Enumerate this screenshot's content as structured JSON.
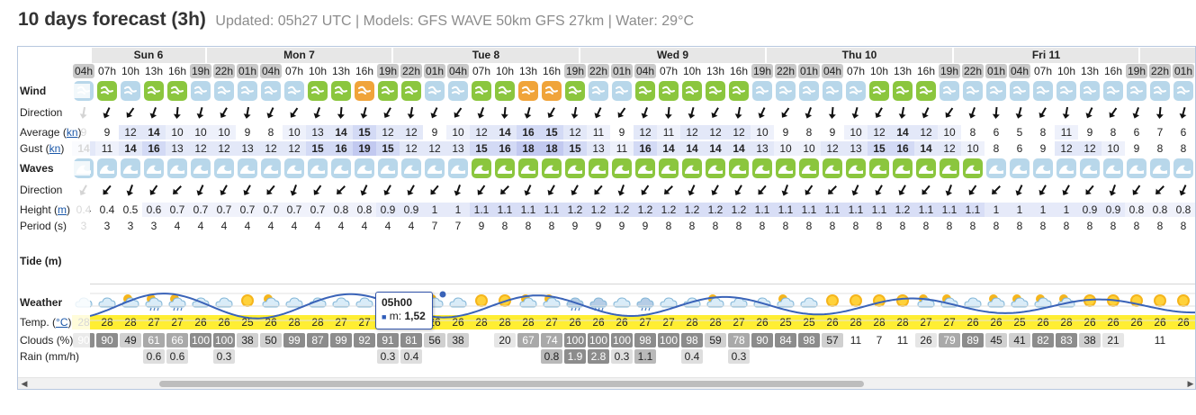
{
  "header": {
    "title": "10 days forecast (3h)",
    "updated": "Updated: 05h27 UTC | Models: GFS WAVE 50km GFS 27km | Water: 29°C"
  },
  "days": [
    {
      "label": "Sun 6"
    },
    {
      "label": "Mon 7"
    },
    {
      "label": "Tue 8"
    },
    {
      "label": "Wed 9"
    },
    {
      "label": "Thu 10"
    },
    {
      "label": "Fri 11"
    }
  ],
  "labels": {
    "wind": "Wind",
    "direction": "Direction",
    "average": "Average (",
    "average_unit": "kn",
    "gust": "Gust (",
    "gust_unit": "kn",
    "waves": "Waves",
    "wave_direction": "Direction",
    "height": "Height (",
    "height_unit": "m",
    "period": "Period (s)",
    "tide": "Tide (m)",
    "weather": "Weather",
    "temp": "Temp. (",
    "temp_unit": "°C",
    "clouds": "Clouds (%)",
    "rain": "Rain (mm/h)",
    "close_paren": ")"
  },
  "tooltip": {
    "time": "05h00",
    "series": "m:",
    "value": "1,52"
  },
  "hours": [
    "04h",
    "07h",
    "10h",
    "13h",
    "16h",
    "19h",
    "22h",
    "01h",
    "04h",
    "07h",
    "10h",
    "13h",
    "16h",
    "19h",
    "22h",
    "01h",
    "04h",
    "07h",
    "10h",
    "13h",
    "16h",
    "19h",
    "22h",
    "01h",
    "04h",
    "07h",
    "10h",
    "13h",
    "16h",
    "19h",
    "22h",
    "01h",
    "04h",
    "07h",
    "10h",
    "13h",
    "16h",
    "19h",
    "22h",
    "01h",
    "04h",
    "07h",
    "10h",
    "13h",
    "16h",
    "19h",
    "22h",
    "01h",
    "04h"
  ],
  "wind_avg": [
    "9",
    "9",
    "12",
    "14",
    "10",
    "10",
    "10",
    "9",
    "8",
    "10",
    "13",
    "14",
    "15",
    "12",
    "12",
    "9",
    "10",
    "12",
    "14",
    "16",
    "15",
    "12",
    "11",
    "9",
    "12",
    "11",
    "12",
    "12",
    "12",
    "10",
    "9",
    "8",
    "9",
    "10",
    "12",
    "14",
    "12",
    "10",
    "8",
    "6",
    "5",
    "8",
    "11",
    "9",
    "8",
    "6",
    "7",
    "6",
    "7"
  ],
  "wind_gust": [
    "14",
    "11",
    "14",
    "16",
    "13",
    "12",
    "12",
    "13",
    "12",
    "12",
    "15",
    "16",
    "19",
    "15",
    "12",
    "12",
    "13",
    "15",
    "16",
    "18",
    "18",
    "15",
    "13",
    "11",
    "16",
    "14",
    "14",
    "14",
    "14",
    "13",
    "10",
    "10",
    "12",
    "13",
    "15",
    "16",
    "14",
    "12",
    "10",
    "8",
    "6",
    "9",
    "12",
    "12",
    "10",
    "9",
    "8",
    "8",
    "8"
  ],
  "wave_height": [
    "0.4",
    "0.4",
    "0.5",
    "0.6",
    "0.7",
    "0.7",
    "0.7",
    "0.7",
    "0.7",
    "0.7",
    "0.7",
    "0.8",
    "0.8",
    "0.9",
    "0.9",
    "1",
    "1",
    "1.1",
    "1.1",
    "1.1",
    "1.1",
    "1.2",
    "1.2",
    "1.2",
    "1.2",
    "1.2",
    "1.2",
    "1.2",
    "1.2",
    "1.1",
    "1.1",
    "1.1",
    "1.1",
    "1.1",
    "1.1",
    "1.2",
    "1.1",
    "1.1",
    "1.1",
    "1",
    "1",
    "1",
    "1",
    "0.9",
    "0.9",
    "0.8",
    "0.8",
    "0.8",
    "0.8"
  ],
  "wave_period": [
    "3",
    "3",
    "3",
    "3",
    "4",
    "4",
    "4",
    "4",
    "4",
    "4",
    "4",
    "4",
    "4",
    "4",
    "4",
    "7",
    "7",
    "9",
    "8",
    "8",
    "8",
    "9",
    "9",
    "9",
    "9",
    "8",
    "8",
    "8",
    "8",
    "8",
    "8",
    "8",
    "8",
    "8",
    "8",
    "8",
    "8",
    "8",
    "8",
    "8",
    "8",
    "8",
    "8",
    "8",
    "8",
    "8",
    "8",
    "8",
    "8"
  ],
  "temp": [
    "28",
    "28",
    "28",
    "27",
    "27",
    "26",
    "26",
    "25",
    "26",
    "28",
    "28",
    "27",
    "27",
    "27",
    "26",
    "26",
    "26",
    "28",
    "28",
    "28",
    "27",
    "26",
    "26",
    "26",
    "27",
    "27",
    "28",
    "28",
    "27",
    "26",
    "25",
    "25",
    "26",
    "28",
    "28",
    "28",
    "27",
    "27",
    "26",
    "26",
    "25",
    "26",
    "28",
    "26",
    "26",
    "26",
    "26",
    "26",
    "26"
  ],
  "clouds": [
    "90",
    "90",
    "49",
    "61",
    "66",
    "100",
    "100",
    "38",
    "50",
    "99",
    "87",
    "99",
    "92",
    "91",
    "81",
    "56",
    "38",
    "",
    "20",
    "67",
    "74",
    "100",
    "100",
    "100",
    "98",
    "100",
    "98",
    "59",
    "78",
    "90",
    "84",
    "98",
    "57",
    "11",
    "7",
    "11",
    "26",
    "79",
    "89",
    "45",
    "41",
    "82",
    "83",
    "38",
    "21",
    "",
    "11",
    "",
    ""
  ],
  "rain": [
    "",
    "",
    "",
    "0.6",
    "0.6",
    "",
    "0.3",
    "",
    "",
    "",
    "",
    "",
    "",
    "0.3",
    "0.4",
    "",
    "",
    "",
    "",
    "",
    "0.8",
    "1.9",
    "2.8",
    "0.3",
    "1.1",
    "",
    "0.4",
    "",
    "0.3",
    "",
    "",
    "",
    "",
    "",
    "",
    "",
    "",
    "",
    "",
    "",
    "",
    "",
    "",
    "",
    "",
    "",
    "",
    "",
    ""
  ],
  "wind_icon_colors": [
    "#b8d7ea",
    "#8bc63e",
    "#b8d7ea",
    "#8bc63e",
    "#8bc63e",
    "#b8d7ea",
    "#b8d7ea",
    "#b8d7ea",
    "#b8d7ea",
    "#b8d7ea",
    "#8bc63e",
    "#8bc63e",
    "#f0a43a",
    "#8bc63e",
    "#8bc63e",
    "#b8d7ea",
    "#b8d7ea",
    "#8bc63e",
    "#8bc63e",
    "#f0a43a",
    "#f0a43a",
    "#8bc63e",
    "#b8d7ea",
    "#b8d7ea",
    "#8bc63e",
    "#8bc63e",
    "#8bc63e",
    "#8bc63e",
    "#8bc63e",
    "#b8d7ea",
    "#b8d7ea",
    "#b8d7ea",
    "#b8d7ea",
    "#b8d7ea",
    "#8bc63e",
    "#8bc63e",
    "#8bc63e",
    "#b8d7ea",
    "#b8d7ea",
    "#b8d7ea",
    "#b8d7ea",
    "#b8d7ea",
    "#b8d7ea",
    "#b8d7ea",
    "#b8d7ea",
    "#b8d7ea",
    "#b8d7ea",
    "#b8d7ea",
    "#b8d7ea"
  ],
  "wave_icon_colors": [
    "#b8d7ea",
    "#b8d7ea",
    "#b8d7ea",
    "#b8d7ea",
    "#b8d7ea",
    "#b8d7ea",
    "#b8d7ea",
    "#b8d7ea",
    "#b8d7ea",
    "#b8d7ea",
    "#b8d7ea",
    "#b8d7ea",
    "#b8d7ea",
    "#b8d7ea",
    "#b8d7ea",
    "#b8d7ea",
    "#b8d7ea",
    "#8bc63e",
    "#8bc63e",
    "#8bc63e",
    "#8bc63e",
    "#8bc63e",
    "#8bc63e",
    "#8bc63e",
    "#8bc63e",
    "#8bc63e",
    "#8bc63e",
    "#8bc63e",
    "#8bc63e",
    "#8bc63e",
    "#8bc63e",
    "#8bc63e",
    "#8bc63e",
    "#8bc63e",
    "#8bc63e",
    "#8bc63e",
    "#8bc63e",
    "#8bc63e",
    "#8bc63e",
    "#b8d7ea",
    "#b8d7ea",
    "#b8d7ea",
    "#b8d7ea",
    "#b8d7ea",
    "#b8d7ea",
    "#b8d7ea",
    "#b8d7ea",
    "#b8d7ea",
    "#b8d7ea"
  ],
  "weather_icons": [
    "cloud",
    "cloud",
    "sun-cloud",
    "sun-cloud-rain",
    "sun-cloud-rain",
    "cloud",
    "cloud",
    "sun",
    "sun-cloud",
    "cloud",
    "cloud",
    "cloud",
    "cloud",
    "cloud",
    "sun-cloud",
    "sun-cloud",
    "cloud",
    "sun",
    "sun",
    "sun-cloud",
    "sun-cloud",
    "cloud-rain",
    "cloud-rain",
    "cloud",
    "cloud-rain",
    "cloud",
    "cloud",
    "sun-cloud",
    "cloud",
    "cloud",
    "sun-cloud",
    "cloud",
    "sun",
    "sun",
    "sun",
    "sun",
    "sun-cloud",
    "sun-cloud",
    "cloud",
    "sun-cloud",
    "sun-cloud",
    "sun-cloud",
    "sun-cloud",
    "sun",
    "sun",
    "sun",
    "sun",
    "sun",
    "sun"
  ]
}
